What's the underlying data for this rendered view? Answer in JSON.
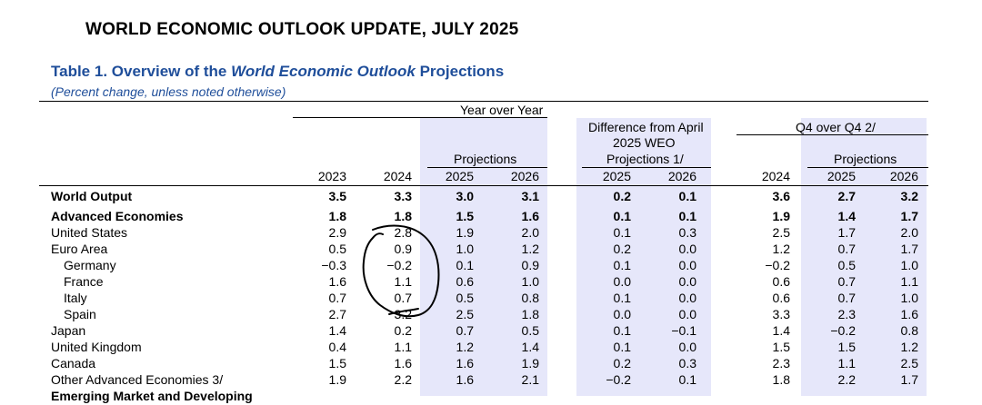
{
  "header": {
    "doc_title": "WORLD ECONOMIC OUTLOOK UPDATE, JULY 2025",
    "table_prefix": "Table 1. Overview of the ",
    "table_italic": "World Economic Outlook",
    "table_suffix": " Projections",
    "subtitle": "(Percent change, unless noted otherwise)"
  },
  "colgroups": {
    "yoy": "Year over Year",
    "projections": "Projections",
    "diff_line1": "Difference from April",
    "diff_line2": "2025 WEO",
    "diff_line3": "Projections 1/",
    "q4": "Q4 over Q4 2/",
    "q4_projections": "Projections"
  },
  "years": [
    "2023",
    "2024",
    "2025",
    "2026",
    "2025",
    "2026",
    "2024",
    "2025",
    "2026"
  ],
  "rows": [
    {
      "label": "World Output",
      "bold": true,
      "indent": false,
      "values": [
        "3.5",
        "3.3",
        "3.0",
        "3.1",
        "0.2",
        "0.1",
        "3.6",
        "2.7",
        "3.2"
      ]
    },
    {
      "label": "Advanced Economies",
      "bold": true,
      "indent": false,
      "values": [
        "1.8",
        "1.8",
        "1.5",
        "1.6",
        "0.1",
        "0.1",
        "1.9",
        "1.4",
        "1.7"
      ]
    },
    {
      "label": "United States",
      "bold": false,
      "indent": false,
      "values": [
        "2.9",
        "2.8",
        "1.9",
        "2.0",
        "0.1",
        "0.3",
        "2.5",
        "1.7",
        "2.0"
      ]
    },
    {
      "label": "Euro Area",
      "bold": false,
      "indent": false,
      "values": [
        "0.5",
        "0.9",
        "1.0",
        "1.2",
        "0.2",
        "0.0",
        "1.2",
        "0.7",
        "1.7"
      ]
    },
    {
      "label": "Germany",
      "bold": false,
      "indent": true,
      "values": [
        "−0.3",
        "−0.2",
        "0.1",
        "0.9",
        "0.1",
        "0.0",
        "−0.2",
        "0.5",
        "1.0"
      ]
    },
    {
      "label": "France",
      "bold": false,
      "indent": true,
      "values": [
        "1.6",
        "1.1",
        "0.6",
        "1.0",
        "0.0",
        "0.0",
        "0.6",
        "0.7",
        "1.1"
      ]
    },
    {
      "label": "Italy",
      "bold": false,
      "indent": true,
      "values": [
        "0.7",
        "0.7",
        "0.5",
        "0.8",
        "0.1",
        "0.0",
        "0.6",
        "0.7",
        "1.0"
      ]
    },
    {
      "label": "Spain",
      "bold": false,
      "indent": true,
      "values": [
        "2.7",
        "3.2",
        "2.5",
        "1.8",
        "0.0",
        "0.0",
        "3.3",
        "2.3",
        "1.6"
      ]
    },
    {
      "label": "Japan",
      "bold": false,
      "indent": false,
      "values": [
        "1.4",
        "0.2",
        "0.7",
        "0.5",
        "0.1",
        "−0.1",
        "1.4",
        "−0.2",
        "0.8"
      ]
    },
    {
      "label": "United Kingdom",
      "bold": false,
      "indent": false,
      "values": [
        "0.4",
        "1.1",
        "1.2",
        "1.4",
        "0.1",
        "0.0",
        "1.5",
        "1.5",
        "1.2"
      ]
    },
    {
      "label": "Canada",
      "bold": false,
      "indent": false,
      "values": [
        "1.5",
        "1.6",
        "1.6",
        "1.9",
        "0.2",
        "0.3",
        "2.3",
        "1.1",
        "2.5"
      ]
    },
    {
      "label": "Other Advanced Economies 3/",
      "bold": false,
      "indent": false,
      "values": [
        "1.9",
        "2.2",
        "1.6",
        "2.1",
        "−0.2",
        "0.1",
        "1.8",
        "2.2",
        "1.7"
      ]
    },
    {
      "label": "Emerging Market and Developing",
      "bold": true,
      "indent": false,
      "values": [
        "",
        "",
        "",
        "",
        "",
        "",
        "",
        "",
        ""
      ]
    }
  ],
  "colors": {
    "title_blue": "#1f4e9a",
    "shade": "#e6e7fa"
  }
}
